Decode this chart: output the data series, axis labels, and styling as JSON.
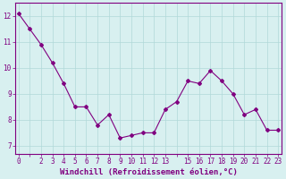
{
  "x": [
    0,
    1,
    2,
    3,
    4,
    5,
    6,
    7,
    8,
    9,
    10,
    11,
    12,
    13,
    14,
    15,
    16,
    17,
    18,
    19,
    20,
    21,
    22,
    23
  ],
  "y": [
    12.1,
    11.5,
    10.9,
    10.2,
    9.4,
    8.5,
    8.5,
    7.8,
    8.2,
    7.3,
    7.4,
    7.5,
    7.5,
    8.4,
    8.7,
    9.5,
    9.4,
    9.9,
    9.5,
    9.0,
    8.2,
    8.4,
    7.6,
    7.6
  ],
  "line_color": "#800080",
  "marker": "D",
  "marker_size": 2.0,
  "bg_color": "#d8f0f0",
  "grid_color": "#b0d8d8",
  "xlabel": "Windchill (Refroidissement éolien,°C)",
  "yticks": [
    7,
    8,
    9,
    10,
    11,
    12
  ],
  "xtick_labels": [
    "0",
    "",
    "2",
    "3",
    "4",
    "5",
    "6",
    "7",
    "8",
    "9",
    "10",
    "11",
    "12",
    "13",
    "",
    "15",
    "16",
    "17",
    "18",
    "19",
    "20",
    "21",
    "22",
    "23"
  ],
  "xlim": [
    -0.3,
    23.3
  ],
  "ylim": [
    6.7,
    12.5
  ],
  "tick_color": "#800080",
  "tick_fontsize": 5.5,
  "xlabel_fontsize": 6.5,
  "grid_linewidth": 0.5,
  "line_width": 0.8,
  "spine_color": "#800080"
}
